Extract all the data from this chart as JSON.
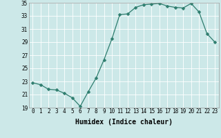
{
  "x": [
    0,
    1,
    2,
    3,
    4,
    5,
    6,
    7,
    8,
    9,
    10,
    11,
    12,
    13,
    14,
    15,
    16,
    17,
    18,
    19,
    20,
    21,
    22,
    23
  ],
  "y": [
    22.8,
    22.5,
    21.8,
    21.7,
    21.2,
    20.5,
    19.2,
    21.4,
    23.5,
    26.3,
    29.5,
    33.2,
    33.3,
    34.3,
    34.7,
    34.8,
    34.9,
    34.5,
    34.3,
    34.2,
    34.9,
    33.6,
    30.3,
    29.0
  ],
  "xlabel": "Humidex (Indice chaleur)",
  "ylim": [
    19,
    35
  ],
  "yticks": [
    19,
    21,
    23,
    25,
    27,
    29,
    31,
    33,
    35
  ],
  "xticks": [
    0,
    1,
    2,
    3,
    4,
    5,
    6,
    7,
    8,
    9,
    10,
    11,
    12,
    13,
    14,
    15,
    16,
    17,
    18,
    19,
    20,
    21,
    22,
    23
  ],
  "line_color": "#2e7d6e",
  "marker_color": "#2e7d6e",
  "bg_color": "#cce8e8",
  "grid_color": "#ffffff",
  "tick_label_fontsize": 5.5,
  "xlabel_fontsize": 7,
  "marker_size": 2.5,
  "line_width": 0.9
}
